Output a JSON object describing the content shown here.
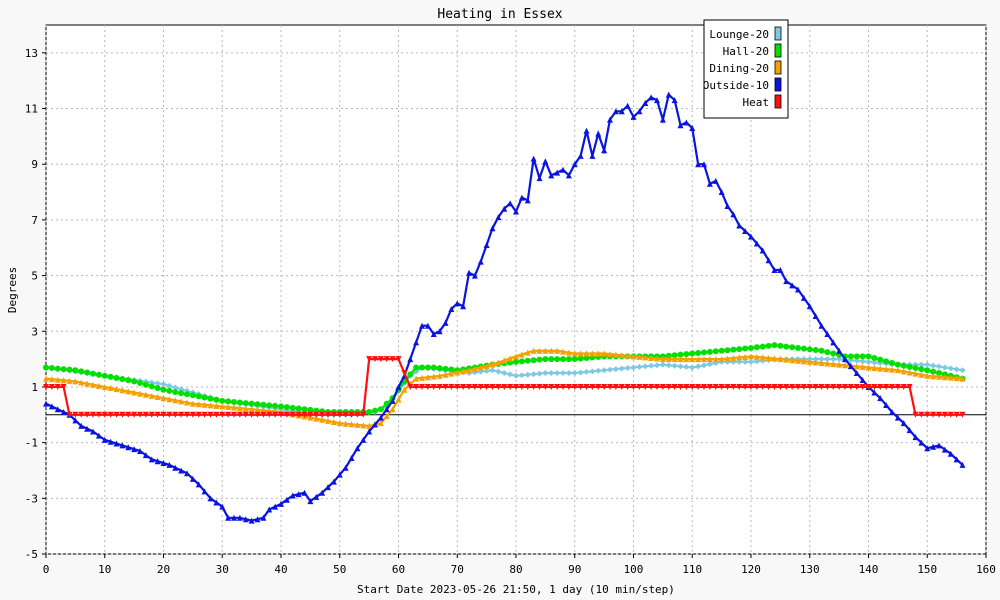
{
  "chart_data": {
    "type": "line",
    "title": "Heating in Essex",
    "xlabel": "Start Date 2023-05-26 21:50, 1 day (10 min/step)",
    "ylabel": "Degrees",
    "xlim": [
      0,
      160
    ],
    "ylim": [
      -5,
      14
    ],
    "x_ticks": [
      0,
      10,
      20,
      30,
      40,
      50,
      60,
      70,
      80,
      90,
      100,
      110,
      120,
      130,
      140,
      150,
      160
    ],
    "y_ticks": [
      -5,
      -3,
      -1,
      1,
      3,
      5,
      7,
      9,
      11,
      13
    ],
    "grid": true,
    "legend_position": "top-right",
    "zero_line": 0,
    "series": [
      {
        "name": "Lounge-20",
        "color": "#7ec8e3",
        "marker": "diamond",
        "points": [
          [
            0,
            1.7
          ],
          [
            10,
            1.4
          ],
          [
            20,
            1.1
          ],
          [
            30,
            0.5
          ],
          [
            40,
            0.2
          ],
          [
            46,
            0.0
          ],
          [
            52,
            0.0
          ],
          [
            56,
            0.1
          ],
          [
            58,
            0.3
          ],
          [
            62,
            1.4
          ],
          [
            64,
            1.7
          ],
          [
            68,
            1.6
          ],
          [
            72,
            1.5
          ],
          [
            76,
            1.6
          ],
          [
            80,
            1.4
          ],
          [
            85,
            1.5
          ],
          [
            90,
            1.5
          ],
          [
            95,
            1.6
          ],
          [
            100,
            1.7
          ],
          [
            105,
            1.8
          ],
          [
            110,
            1.7
          ],
          [
            115,
            1.9
          ],
          [
            120,
            1.9
          ],
          [
            125,
            2.0
          ],
          [
            130,
            2.0
          ],
          [
            135,
            2.0
          ],
          [
            140,
            1.9
          ],
          [
            145,
            1.8
          ],
          [
            150,
            1.8
          ],
          [
            156,
            1.6
          ]
        ]
      },
      {
        "name": "Hall-20",
        "color": "#00e000",
        "marker": "circle",
        "points": [
          [
            0,
            1.7
          ],
          [
            5,
            1.6
          ],
          [
            10,
            1.4
          ],
          [
            15,
            1.2
          ],
          [
            20,
            0.9
          ],
          [
            25,
            0.7
          ],
          [
            30,
            0.5
          ],
          [
            35,
            0.4
          ],
          [
            40,
            0.3
          ],
          [
            44,
            0.2
          ],
          [
            48,
            0.1
          ],
          [
            52,
            0.1
          ],
          [
            55,
            0.1
          ],
          [
            57,
            0.2
          ],
          [
            59,
            0.6
          ],
          [
            61,
            1.2
          ],
          [
            63,
            1.7
          ],
          [
            66,
            1.7
          ],
          [
            70,
            1.6
          ],
          [
            73,
            1.7
          ],
          [
            76,
            1.8
          ],
          [
            80,
            1.9
          ],
          [
            85,
            2.0
          ],
          [
            90,
            2.0
          ],
          [
            95,
            2.1
          ],
          [
            100,
            2.1
          ],
          [
            105,
            2.1
          ],
          [
            110,
            2.2
          ],
          [
            115,
            2.3
          ],
          [
            120,
            2.4
          ],
          [
            124,
            2.5
          ],
          [
            128,
            2.4
          ],
          [
            132,
            2.3
          ],
          [
            136,
            2.1
          ],
          [
            140,
            2.1
          ],
          [
            145,
            1.8
          ],
          [
            150,
            1.6
          ],
          [
            156,
            1.3
          ]
        ]
      },
      {
        "name": "Dining-20",
        "color": "#f5a000",
        "marker": "triangle",
        "points": [
          [
            0,
            1.3
          ],
          [
            5,
            1.2
          ],
          [
            10,
            1.0
          ],
          [
            15,
            0.8
          ],
          [
            20,
            0.6
          ],
          [
            25,
            0.4
          ],
          [
            30,
            0.3
          ],
          [
            35,
            0.2
          ],
          [
            40,
            0.1
          ],
          [
            45,
            -0.1
          ],
          [
            50,
            -0.3
          ],
          [
            55,
            -0.4
          ],
          [
            57,
            -0.3
          ],
          [
            59,
            0.2
          ],
          [
            61,
            0.9
          ],
          [
            63,
            1.3
          ],
          [
            67,
            1.4
          ],
          [
            72,
            1.6
          ],
          [
            76,
            1.8
          ],
          [
            80,
            2.1
          ],
          [
            83,
            2.3
          ],
          [
            87,
            2.3
          ],
          [
            90,
            2.2
          ],
          [
            95,
            2.2
          ],
          [
            100,
            2.1
          ],
          [
            105,
            2.0
          ],
          [
            110,
            2.0
          ],
          [
            115,
            2.0
          ],
          [
            120,
            2.1
          ],
          [
            125,
            2.0
          ],
          [
            130,
            1.9
          ],
          [
            135,
            1.8
          ],
          [
            140,
            1.7
          ],
          [
            145,
            1.6
          ],
          [
            150,
            1.4
          ],
          [
            156,
            1.3
          ]
        ]
      },
      {
        "name": "Outside-10",
        "color": "#0a14e0",
        "marker": "triangle",
        "points": [
          [
            0,
            0.4
          ],
          [
            2,
            0.2
          ],
          [
            4,
            0.0
          ],
          [
            6,
            -0.4
          ],
          [
            8,
            -0.6
          ],
          [
            10,
            -0.9
          ],
          [
            13,
            -1.1
          ],
          [
            16,
            -1.3
          ],
          [
            18,
            -1.6
          ],
          [
            21,
            -1.8
          ],
          [
            24,
            -2.1
          ],
          [
            26,
            -2.5
          ],
          [
            28,
            -3.0
          ],
          [
            30,
            -3.3
          ],
          [
            31,
            -3.7
          ],
          [
            33,
            -3.7
          ],
          [
            35,
            -3.8
          ],
          [
            37,
            -3.7
          ],
          [
            38,
            -3.4
          ],
          [
            40,
            -3.2
          ],
          [
            42,
            -2.9
          ],
          [
            44,
            -2.8
          ],
          [
            45,
            -3.1
          ],
          [
            47,
            -2.8
          ],
          [
            49,
            -2.4
          ],
          [
            51,
            -1.9
          ],
          [
            53,
            -1.2
          ],
          [
            55,
            -0.6
          ],
          [
            57,
            -0.1
          ],
          [
            59,
            0.5
          ],
          [
            60,
            1.0
          ],
          [
            61,
            1.4
          ],
          [
            62,
            2.0
          ],
          [
            63,
            2.6
          ],
          [
            64,
            3.2
          ],
          [
            65,
            3.2
          ],
          [
            66,
            2.9
          ],
          [
            67,
            3.0
          ],
          [
            68,
            3.3
          ],
          [
            69,
            3.8
          ],
          [
            70,
            4.0
          ],
          [
            71,
            3.9
          ],
          [
            72,
            5.1
          ],
          [
            73,
            5.0
          ],
          [
            74,
            5.5
          ],
          [
            75,
            6.1
          ],
          [
            76,
            6.7
          ],
          [
            77,
            7.1
          ],
          [
            78,
            7.4
          ],
          [
            79,
            7.6
          ],
          [
            80,
            7.3
          ],
          [
            81,
            7.8
          ],
          [
            82,
            7.7
          ],
          [
            83,
            9.2
          ],
          [
            84,
            8.5
          ],
          [
            85,
            9.1
          ],
          [
            86,
            8.6
          ],
          [
            88,
            8.8
          ],
          [
            89,
            8.6
          ],
          [
            90,
            9.0
          ],
          [
            91,
            9.3
          ],
          [
            92,
            10.2
          ],
          [
            93,
            9.3
          ],
          [
            94,
            10.1
          ],
          [
            95,
            9.5
          ],
          [
            96,
            10.6
          ],
          [
            97,
            10.9
          ],
          [
            98,
            10.9
          ],
          [
            99,
            11.1
          ],
          [
            100,
            10.7
          ],
          [
            101,
            10.9
          ],
          [
            102,
            11.2
          ],
          [
            103,
            11.4
          ],
          [
            104,
            11.3
          ],
          [
            105,
            10.6
          ],
          [
            106,
            11.5
          ],
          [
            107,
            11.3
          ],
          [
            108,
            10.4
          ],
          [
            109,
            10.5
          ],
          [
            110,
            10.3
          ],
          [
            111,
            9.0
          ],
          [
            112,
            9.0
          ],
          [
            113,
            8.3
          ],
          [
            114,
            8.4
          ],
          [
            115,
            8.0
          ],
          [
            116,
            7.5
          ],
          [
            117,
            7.2
          ],
          [
            118,
            6.8
          ],
          [
            120,
            6.4
          ],
          [
            122,
            5.9
          ],
          [
            124,
            5.2
          ],
          [
            125,
            5.2
          ],
          [
            126,
            4.8
          ],
          [
            128,
            4.5
          ],
          [
            130,
            3.9
          ],
          [
            132,
            3.2
          ],
          [
            134,
            2.6
          ],
          [
            136,
            2.0
          ],
          [
            138,
            1.5
          ],
          [
            140,
            1.0
          ],
          [
            142,
            0.6
          ],
          [
            144,
            0.1
          ],
          [
            146,
            -0.3
          ],
          [
            148,
            -0.8
          ],
          [
            150,
            -1.2
          ],
          [
            152,
            -1.1
          ],
          [
            154,
            -1.4
          ],
          [
            156,
            -1.8
          ]
        ]
      },
      {
        "name": "Heat",
        "color": "#ff1010",
        "marker": "triangle-down",
        "points": [
          [
            0,
            1.0
          ],
          [
            3,
            1.0
          ],
          [
            4,
            0.0
          ],
          [
            54,
            0.0
          ],
          [
            55,
            2.0
          ],
          [
            60,
            2.0
          ],
          [
            62,
            1.0
          ],
          [
            147,
            1.0
          ],
          [
            148,
            0.0
          ],
          [
            156,
            0.0
          ]
        ]
      }
    ]
  }
}
